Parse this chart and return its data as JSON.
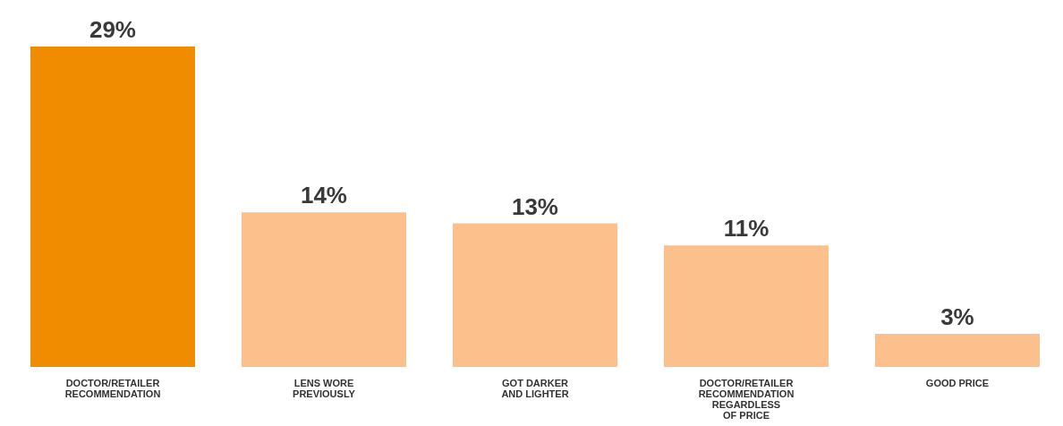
{
  "chart_data": {
    "type": "bar",
    "categories": [
      "DOCTOR/RETAILER RECOMMENDATION",
      "LENS WORE PREVIOUSLY",
      "GOT DARKER AND LIGHTER",
      "DOCTOR/RETAILER RECOMMENDATION REGARDLESS OF PRICE",
      "GOOD PRICE"
    ],
    "values": [
      29,
      14,
      13,
      11,
      3
    ],
    "colors": [
      "#f08c00",
      "#fcc08c",
      "#fcc08c",
      "#fcc08c",
      "#fcc08c"
    ],
    "value_labels": [
      "29%",
      "14%",
      "13%",
      "11%",
      "3%"
    ],
    "grid": false,
    "legend": false
  }
}
